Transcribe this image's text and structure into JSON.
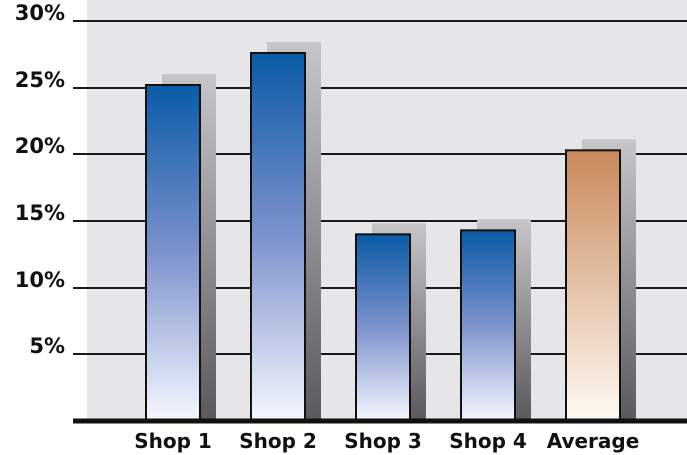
{
  "chart_data": {
    "type": "bar",
    "title": "",
    "xlabel": "",
    "ylabel": "",
    "categories": [
      "Shop 1",
      "Shop 2",
      "Shop 3",
      "Shop 4",
      "Average"
    ],
    "values": [
      25.2,
      27.6,
      14.0,
      14.3,
      20.3
    ],
    "ylim": [
      0,
      30
    ],
    "yticks": [
      {
        "value": 5,
        "label": "5%"
      },
      {
        "value": 10,
        "label": "10%"
      },
      {
        "value": 15,
        "label": "15%"
      },
      {
        "value": 20,
        "label": "20%"
      },
      {
        "value": 25,
        "label": "25%"
      },
      {
        "value": 30,
        "label": "30%"
      }
    ],
    "grid": true,
    "legend": "none",
    "colors": {
      "plot_background": "#e6e6e8",
      "shop_bar_top": "#0a5ba6",
      "shop_bar_mid": "#7d92cd",
      "shop_bar_bottom": "#f6f8ff",
      "average_bar_top": "#c8895a",
      "average_bar_bottom": "#fffaf4",
      "shadow_top": "#c6c6c8",
      "shadow_bottom": "#5a5a5c",
      "gridline": "#1a1a1a",
      "axis": "#111111"
    }
  }
}
